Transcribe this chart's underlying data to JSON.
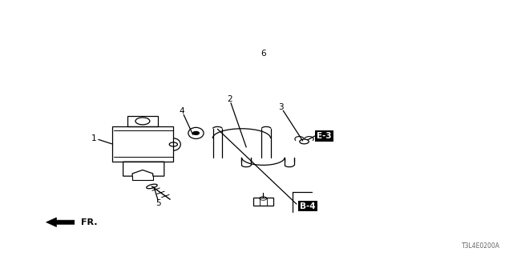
{
  "bg_color": "#ffffff",
  "lc": "#000000",
  "diagram_code": "T3L4E0200A",
  "fr_label": "FR.",
  "ref_boxes": {
    "B-4": [
      0.6,
      0.195
    ],
    "E-3": [
      0.632,
      0.468
    ]
  },
  "lw": 0.9,
  "label_fs": 7.5
}
